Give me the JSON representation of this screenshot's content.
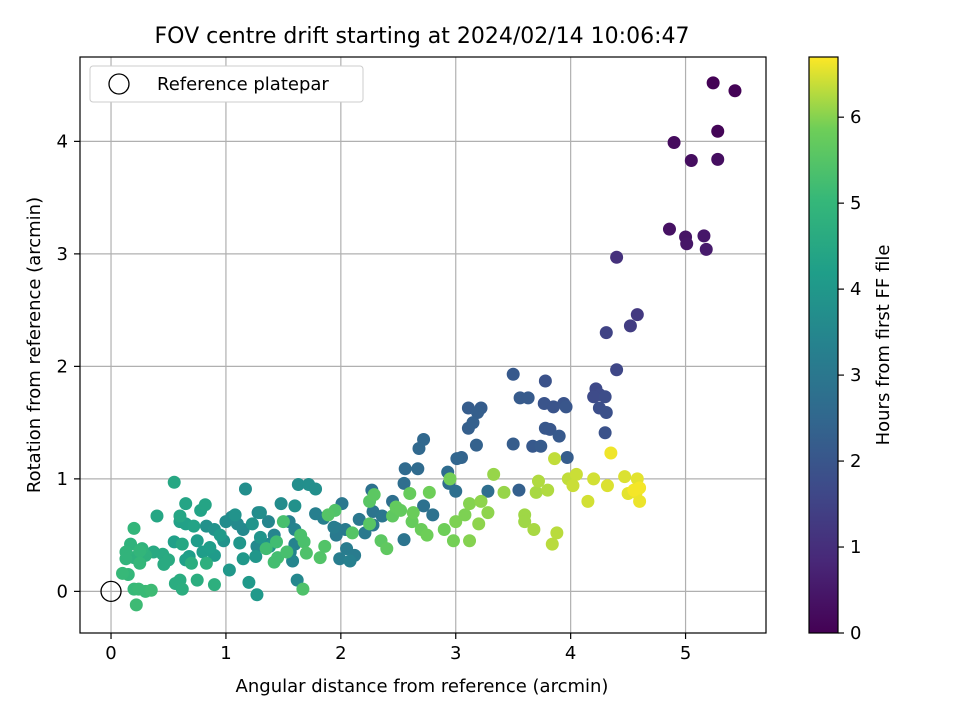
{
  "chart_data": {
    "type": "scatter",
    "title": "FOV centre drift starting at 2024/02/14 10:06:47",
    "xlabel": "Angular distance from reference (arcmin)",
    "ylabel": "Rotation from reference (arcmin)",
    "xlim": [
      -0.27,
      5.7
    ],
    "ylim": [
      -0.37,
      4.75
    ],
    "xticks": [
      0,
      1,
      2,
      3,
      4,
      5
    ],
    "yticks": [
      0,
      1,
      2,
      3,
      4
    ],
    "grid": true,
    "legend": {
      "location": "upper-left",
      "entries": [
        "Reference platepar"
      ]
    },
    "reference_point": {
      "x": 0,
      "y": 0
    },
    "colorbar": {
      "label": "Hours from first FF file",
      "colormap": "viridis",
      "range": [
        0,
        6.7
      ],
      "ticks": [
        0,
        1,
        2,
        3,
        4,
        5,
        6
      ]
    },
    "series": [
      {
        "points": [
          [
            5.24,
            4.52,
            0.03
          ],
          [
            5.43,
            4.45,
            0.05
          ],
          [
            5.28,
            4.09,
            0.08
          ],
          [
            4.9,
            3.99,
            0.22
          ],
          [
            5.05,
            3.83,
            0.25
          ],
          [
            5.28,
            3.84,
            0.28
          ],
          [
            4.86,
            3.22,
            0.35
          ],
          [
            5.0,
            3.15,
            0.4
          ],
          [
            5.01,
            3.09,
            0.45
          ],
          [
            5.16,
            3.16,
            0.48
          ],
          [
            5.18,
            3.04,
            0.55
          ],
          [
            4.4,
            2.97,
            1.05
          ],
          [
            4.58,
            2.46,
            1.25
          ],
          [
            4.52,
            2.36,
            1.35
          ],
          [
            4.31,
            2.3,
            1.5
          ],
          [
            4.4,
            1.97,
            1.6
          ],
          [
            4.22,
            1.8,
            1.65
          ],
          [
            4.25,
            1.75,
            1.7
          ],
          [
            4.2,
            1.73,
            1.7
          ],
          [
            4.3,
            1.73,
            1.75
          ],
          [
            4.25,
            1.63,
            1.8
          ],
          [
            4.31,
            1.59,
            1.85
          ],
          [
            4.3,
            1.41,
            1.9
          ],
          [
            3.78,
            1.87,
            1.9
          ],
          [
            3.77,
            1.67,
            1.95
          ],
          [
            3.85,
            1.64,
            1.95
          ],
          [
            3.94,
            1.67,
            1.95
          ],
          [
            3.96,
            1.64,
            2.0
          ],
          [
            3.78,
            1.45,
            2.05
          ],
          [
            3.82,
            1.44,
            2.05
          ],
          [
            3.9,
            1.38,
            2.1
          ],
          [
            3.67,
            1.29,
            2.1
          ],
          [
            3.74,
            1.29,
            2.15
          ],
          [
            3.97,
            1.19,
            2.2
          ],
          [
            3.5,
            1.93,
            2.1
          ],
          [
            3.56,
            1.72,
            2.15
          ],
          [
            3.63,
            1.72,
            2.15
          ],
          [
            3.5,
            1.31,
            2.2
          ],
          [
            3.55,
            0.9,
            2.3
          ],
          [
            3.11,
            1.63,
            2.2
          ],
          [
            3.22,
            1.63,
            2.2
          ],
          [
            3.19,
            1.59,
            2.25
          ],
          [
            3.11,
            1.45,
            2.25
          ],
          [
            3.15,
            1.5,
            2.3
          ],
          [
            3.18,
            1.3,
            2.35
          ],
          [
            3.05,
            1.19,
            2.4
          ],
          [
            3.01,
            1.18,
            2.45
          ],
          [
            2.72,
            1.35,
            2.5
          ],
          [
            2.68,
            1.27,
            2.55
          ],
          [
            2.56,
            1.09,
            2.6
          ],
          [
            2.67,
            1.09,
            2.6
          ],
          [
            2.93,
            1.06,
            2.65
          ],
          [
            2.55,
            0.96,
            2.7
          ],
          [
            2.94,
            0.96,
            2.7
          ],
          [
            3.28,
            0.89,
            2.7
          ],
          [
            3.0,
            0.89,
            2.75
          ],
          [
            2.45,
            0.8,
            2.75
          ],
          [
            2.27,
            0.9,
            2.8
          ],
          [
            2.72,
            0.76,
            2.8
          ],
          [
            2.8,
            0.68,
            2.85
          ],
          [
            2.55,
            0.46,
            2.9
          ],
          [
            2.28,
            0.71,
            2.9
          ],
          [
            2.36,
            0.67,
            2.95
          ],
          [
            2.16,
            0.64,
            3.0
          ],
          [
            2.28,
            0.59,
            3.0
          ],
          [
            2.01,
            0.78,
            3.0
          ],
          [
            2.21,
            0.52,
            3.05
          ],
          [
            1.96,
            0.56,
            3.05
          ],
          [
            2.04,
            0.55,
            3.1
          ],
          [
            1.96,
            0.5,
            3.1
          ],
          [
            2.05,
            0.38,
            3.15
          ],
          [
            2.12,
            0.32,
            3.15
          ],
          [
            1.99,
            0.29,
            3.2
          ],
          [
            1.85,
            0.65,
            3.25
          ],
          [
            1.94,
            0.57,
            3.2
          ],
          [
            1.78,
            0.69,
            3.25
          ],
          [
            2.08,
            0.27,
            3.3
          ],
          [
            1.55,
            0.62,
            3.3
          ],
          [
            1.6,
            0.55,
            3.35
          ],
          [
            1.6,
            0.42,
            3.35
          ],
          [
            1.56,
            0.35,
            3.4
          ],
          [
            1.42,
            0.5,
            3.4
          ],
          [
            1.37,
            0.62,
            3.45
          ],
          [
            1.58,
            0.27,
            3.45
          ],
          [
            1.62,
            0.1,
            3.5
          ],
          [
            1.38,
            0.42,
            3.5
          ],
          [
            1.27,
            0.4,
            3.55
          ],
          [
            1.15,
            0.55,
            3.55
          ],
          [
            1.05,
            0.66,
            3.6
          ],
          [
            1.1,
            0.6,
            3.6
          ],
          [
            1.28,
            0.7,
            3.6
          ],
          [
            1.0,
            0.62,
            3.65
          ],
          [
            1.48,
            0.78,
            3.65
          ],
          [
            1.3,
            0.7,
            3.7
          ],
          [
            1.17,
            0.91,
            3.7
          ],
          [
            1.63,
            0.95,
            3.7
          ],
          [
            1.72,
            0.95,
            3.75
          ],
          [
            1.78,
            0.91,
            3.75
          ],
          [
            1.6,
            0.76,
            3.8
          ],
          [
            0.83,
            0.58,
            3.8
          ],
          [
            0.9,
            0.55,
            3.85
          ],
          [
            1.08,
            0.68,
            3.85
          ],
          [
            0.98,
            0.45,
            3.85
          ],
          [
            1.23,
            0.6,
            3.9
          ],
          [
            1.3,
            0.48,
            3.9
          ],
          [
            1.38,
            0.4,
            3.9
          ],
          [
            1.12,
            0.43,
            3.95
          ],
          [
            1.26,
            0.31,
            3.95
          ],
          [
            1.15,
            0.29,
            4.0
          ],
          [
            1.03,
            0.19,
            4.0
          ],
          [
            1.2,
            0.08,
            4.05
          ],
          [
            1.27,
            -0.03,
            4.05
          ],
          [
            0.9,
            0.32,
            4.1
          ],
          [
            0.95,
            0.5,
            4.1
          ],
          [
            0.75,
            0.45,
            4.15
          ],
          [
            0.8,
            0.35,
            4.15
          ],
          [
            0.86,
            0.39,
            4.2
          ],
          [
            0.68,
            0.31,
            4.2
          ],
          [
            0.65,
            0.28,
            4.25
          ],
          [
            0.55,
            0.44,
            4.25
          ],
          [
            0.6,
            0.62,
            4.3
          ],
          [
            0.65,
            0.6,
            4.3
          ],
          [
            0.72,
            0.58,
            4.35
          ],
          [
            0.78,
            0.72,
            4.35
          ],
          [
            0.82,
            0.77,
            4.4
          ],
          [
            0.65,
            0.78,
            4.4
          ],
          [
            0.6,
            0.67,
            4.45
          ],
          [
            0.4,
            0.67,
            4.45
          ],
          [
            0.55,
            0.97,
            4.5
          ],
          [
            0.62,
            0.42,
            4.5
          ],
          [
            0.45,
            0.33,
            4.55
          ],
          [
            0.37,
            0.35,
            4.55
          ],
          [
            0.5,
            0.28,
            4.6
          ],
          [
            0.46,
            0.24,
            4.6
          ],
          [
            0.6,
            0.1,
            4.65
          ],
          [
            0.56,
            0.07,
            4.65
          ],
          [
            0.62,
            0.02,
            4.7
          ],
          [
            0.7,
            0.25,
            4.7
          ],
          [
            0.75,
            0.1,
            4.7
          ],
          [
            0.83,
            0.25,
            4.75
          ],
          [
            0.9,
            0.06,
            4.75
          ],
          [
            0.3,
            0.32,
            4.8
          ],
          [
            0.2,
            0.3,
            4.8
          ],
          [
            0.27,
            0.38,
            4.85
          ],
          [
            0.17,
            0.42,
            4.85
          ],
          [
            0.13,
            0.35,
            4.9
          ],
          [
            0.13,
            0.29,
            4.9
          ],
          [
            0.2,
            0.56,
            4.95
          ],
          [
            0.25,
            0.36,
            4.95
          ],
          [
            0.25,
            0.25,
            5.0
          ],
          [
            0.15,
            0.15,
            5.0
          ],
          [
            0.1,
            0.16,
            5.05
          ],
          [
            0.2,
            0.02,
            5.05
          ],
          [
            0.24,
            0.02,
            5.1
          ],
          [
            0.3,
            0.0,
            5.1
          ],
          [
            0.35,
            0.01,
            5.15
          ],
          [
            0.22,
            -0.12,
            5.15
          ],
          [
            1.35,
            0.38,
            5.2
          ],
          [
            1.44,
            0.44,
            5.2
          ],
          [
            1.45,
            0.3,
            5.25
          ],
          [
            1.42,
            0.26,
            5.25
          ],
          [
            1.5,
            0.62,
            5.3
          ],
          [
            1.53,
            0.35,
            5.3
          ],
          [
            1.65,
            0.5,
            5.35
          ],
          [
            1.68,
            0.44,
            5.35
          ],
          [
            1.7,
            0.34,
            5.4
          ],
          [
            1.67,
            0.02,
            5.4
          ],
          [
            1.86,
            0.4,
            5.45
          ],
          [
            1.82,
            0.3,
            5.45
          ],
          [
            1.95,
            0.72,
            5.45
          ],
          [
            1.89,
            0.68,
            5.5
          ],
          [
            2.1,
            0.52,
            5.5
          ],
          [
            2.25,
            0.6,
            5.55
          ],
          [
            2.25,
            0.8,
            5.55
          ],
          [
            2.29,
            0.86,
            5.6
          ],
          [
            2.35,
            0.45,
            5.6
          ],
          [
            2.4,
            0.38,
            5.65
          ],
          [
            2.45,
            0.67,
            5.65
          ],
          [
            2.48,
            0.75,
            5.7
          ],
          [
            2.52,
            0.72,
            5.7
          ],
          [
            2.62,
            0.62,
            5.75
          ],
          [
            2.6,
            0.87,
            5.75
          ],
          [
            2.63,
            0.7,
            5.8
          ],
          [
            2.7,
            0.55,
            5.8
          ],
          [
            2.77,
            0.88,
            5.85
          ],
          [
            2.75,
            0.5,
            5.85
          ],
          [
            2.9,
            0.55,
            5.85
          ],
          [
            2.95,
            1.0,
            5.9
          ],
          [
            2.98,
            0.45,
            5.9
          ],
          [
            3.0,
            0.62,
            5.95
          ],
          [
            3.08,
            0.68,
            5.95
          ],
          [
            3.12,
            0.78,
            6.0
          ],
          [
            3.12,
            0.45,
            6.0
          ],
          [
            3.2,
            0.6,
            6.05
          ],
          [
            3.22,
            0.8,
            6.05
          ],
          [
            3.28,
            0.7,
            6.05
          ],
          [
            3.33,
            1.04,
            6.1
          ],
          [
            3.42,
            0.88,
            6.1
          ],
          [
            3.6,
            0.68,
            6.15
          ],
          [
            3.6,
            0.62,
            6.15
          ],
          [
            3.68,
            0.55,
            6.2
          ],
          [
            3.7,
            0.88,
            6.2
          ],
          [
            3.72,
            0.98,
            6.25
          ],
          [
            3.8,
            0.9,
            6.25
          ],
          [
            3.84,
            0.42,
            6.3
          ],
          [
            3.88,
            0.52,
            6.3
          ],
          [
            3.86,
            1.18,
            6.35
          ],
          [
            3.98,
            1.0,
            6.35
          ],
          [
            4.05,
            1.04,
            6.4
          ],
          [
            4.02,
            0.94,
            6.4
          ],
          [
            4.15,
            0.8,
            6.45
          ],
          [
            4.2,
            1.0,
            6.45
          ],
          [
            4.32,
            0.94,
            6.5
          ],
          [
            4.47,
            1.02,
            6.5
          ],
          [
            4.58,
            1.0,
            6.55
          ],
          [
            4.5,
            0.87,
            6.55
          ],
          [
            4.6,
            0.8,
            6.6
          ],
          [
            4.57,
            0.88,
            6.6
          ],
          [
            4.35,
            1.23,
            6.62
          ],
          [
            4.6,
            0.92,
            6.65
          ],
          [
            4.55,
            0.9,
            6.65
          ]
        ]
      }
    ]
  }
}
